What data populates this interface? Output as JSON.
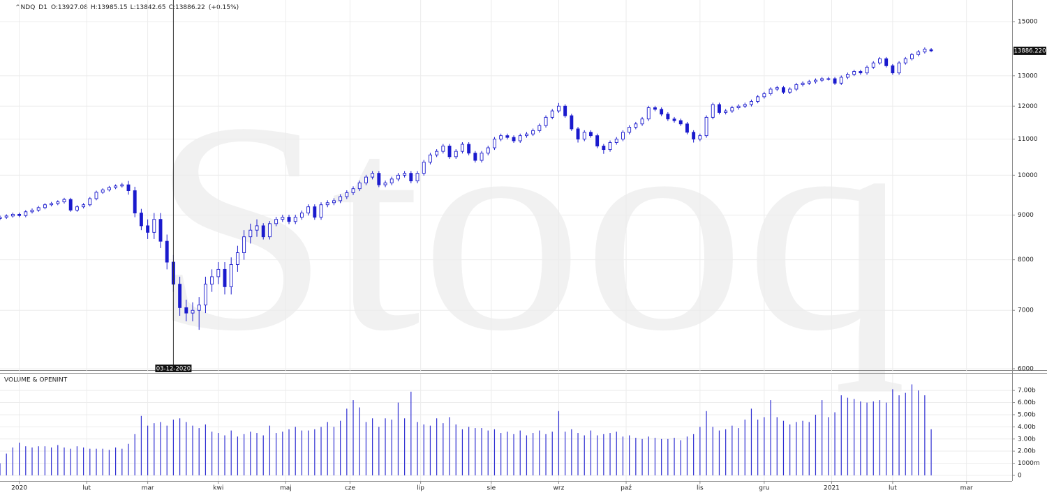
{
  "chart_data": [
    {
      "type": "candlestick",
      "symbol": "^NDQ",
      "interval": "D1",
      "header": {
        "open_label": "O:",
        "high_label": "H:",
        "low_label": "L:",
        "close_label": "C:",
        "change": "(+0.15%)"
      },
      "watermark": "Stooq",
      "color": "#1a1acd",
      "open": [
        8920,
        8950,
        8980,
        9020,
        8990,
        9080,
        9120,
        9180,
        9250,
        9280,
        9320,
        9380,
        9120,
        9200,
        9250,
        9400,
        9560,
        9620,
        9680,
        9720,
        9750,
        9600,
        9050,
        8750,
        8600,
        8900,
        8400,
        7950,
        7500,
        7050,
        6950,
        7000,
        7100,
        7500,
        7650,
        7800,
        7450,
        7900,
        8150,
        8500,
        8650,
        8750,
        8500,
        8800,
        8900,
        8950,
        8850,
        8950,
        9050,
        9200,
        8950,
        9250,
        9300,
        9350,
        9450,
        9550,
        9650,
        9800,
        9950,
        10050,
        9750,
        9800,
        9900,
        10000,
        10050,
        9850,
        10050,
        10350,
        10550,
        10650,
        10800,
        10500,
        10650,
        10850,
        10600,
        10400,
        10600,
        10750,
        11000,
        11100,
        11050,
        10950,
        11100,
        11150,
        11250,
        11400,
        11650,
        11850,
        12000,
        11700,
        11300,
        11000,
        11200,
        11100,
        10800,
        10700,
        10900,
        11000,
        11200,
        11350,
        11450,
        11600,
        11950,
        11900,
        11750,
        11600,
        11550,
        11450,
        11200,
        11000,
        11100,
        11650,
        12050,
        11800,
        11850,
        11950,
        12000,
        12050,
        12150,
        12300,
        12400,
        12550,
        12600,
        12450,
        12550,
        12700,
        12750,
        12800,
        12850,
        12900,
        12900,
        12750,
        12950,
        13050,
        13150,
        13100,
        13300,
        13450,
        13600,
        13350,
        13100,
        13450,
        13600,
        13750,
        13850,
        13927.08
      ],
      "high": [
        8990,
        9020,
        9060,
        9060,
        9120,
        9160,
        9220,
        9290,
        9320,
        9360,
        9420,
        9420,
        9240,
        9290,
        9440,
        9600,
        9660,
        9720,
        9760,
        9800,
        9850,
        9700,
        9150,
        8900,
        9050,
        9050,
        8550,
        8100,
        7650,
        7200,
        7150,
        7250,
        7650,
        7800,
        7950,
        7950,
        8050,
        8300,
        8650,
        8800,
        8900,
        8810,
        8860,
        8960,
        9010,
        9010,
        9010,
        9110,
        9260,
        9260,
        9310,
        9360,
        9410,
        9510,
        9610,
        9710,
        9860,
        10010,
        10110,
        10110,
        9860,
        9960,
        10060,
        10110,
        10110,
        10110,
        10410,
        10610,
        10710,
        10860,
        10860,
        10710,
        10910,
        10910,
        10660,
        10660,
        10810,
        11060,
        11160,
        11160,
        11110,
        11160,
        11210,
        11310,
        11460,
        11710,
        11910,
        12100,
        12060,
        11760,
        11360,
        11260,
        11260,
        11160,
        10860,
        10960,
        11060,
        11260,
        11410,
        11510,
        11660,
        12010,
        12010,
        11960,
        11810,
        11660,
        11610,
        11510,
        11260,
        11160,
        11710,
        12110,
        12110,
        11910,
        12010,
        12060,
        12110,
        12210,
        12360,
        12460,
        12610,
        12660,
        12660,
        12610,
        12760,
        12810,
        12860,
        12910,
        12960,
        12960,
        12960,
        13010,
        13110,
        13210,
        13210,
        13360,
        13510,
        13660,
        13660,
        13410,
        13510,
        13660,
        13810,
        13910,
        14010,
        13985.15
      ],
      "low": [
        8880,
        8910,
        8940,
        8950,
        8950,
        9040,
        9080,
        9140,
        9210,
        9240,
        9280,
        9080,
        9080,
        9160,
        9210,
        9360,
        9520,
        9580,
        9640,
        9680,
        9500,
        8950,
        8650,
        8450,
        8450,
        8250,
        7800,
        7350,
        6900,
        6800,
        6800,
        6650,
        6950,
        7350,
        7500,
        7300,
        7300,
        7750,
        8000,
        8350,
        8500,
        8440,
        8440,
        8740,
        8840,
        8790,
        8790,
        8890,
        8990,
        8890,
        8890,
        9190,
        9240,
        9290,
        9390,
        9490,
        9590,
        9740,
        9890,
        9690,
        9690,
        9740,
        9840,
        9940,
        9790,
        9790,
        9990,
        10290,
        10490,
        10590,
        10440,
        10440,
        10590,
        10540,
        10340,
        10340,
        10540,
        10690,
        10940,
        10990,
        10890,
        10890,
        11040,
        11090,
        11190,
        11340,
        11590,
        11790,
        11640,
        11240,
        10900,
        10940,
        11040,
        10740,
        10580,
        10640,
        10840,
        10940,
        11140,
        11290,
        11390,
        11540,
        11840,
        11690,
        11540,
        11490,
        11390,
        11140,
        10900,
        10940,
        11040,
        11590,
        11740,
        11740,
        11790,
        11890,
        11940,
        11990,
        12090,
        12240,
        12340,
        12490,
        12390,
        12390,
        12490,
        12640,
        12690,
        12740,
        12790,
        12840,
        12690,
        12690,
        12890,
        12990,
        13040,
        13040,
        13240,
        13390,
        13290,
        13040,
        13040,
        13390,
        13540,
        13690,
        13790,
        13842.65
      ],
      "close": [
        8950,
        8980,
        9020,
        8990,
        9080,
        9120,
        9180,
        9250,
        9280,
        9320,
        9380,
        9120,
        9200,
        9250,
        9400,
        9560,
        9620,
        9680,
        9720,
        9750,
        9600,
        9050,
        8750,
        8600,
        8900,
        8400,
        7950,
        7500,
        7050,
        6950,
        7000,
        7100,
        7500,
        7650,
        7800,
        7450,
        7900,
        8150,
        8500,
        8650,
        8750,
        8500,
        8800,
        8900,
        8950,
        8850,
        8950,
        9050,
        9200,
        8950,
        9250,
        9300,
        9350,
        9450,
        9550,
        9650,
        9800,
        9950,
        10050,
        9750,
        9800,
        9900,
        10000,
        10050,
        9850,
        10050,
        10350,
        10550,
        10650,
        10800,
        10500,
        10650,
        10850,
        10600,
        10400,
        10600,
        10750,
        11000,
        11100,
        11050,
        10950,
        11100,
        11150,
        11250,
        11400,
        11650,
        11850,
        12000,
        11700,
        11300,
        11000,
        11200,
        11100,
        10800,
        10700,
        10900,
        11000,
        11200,
        11350,
        11450,
        11600,
        11950,
        11900,
        11750,
        11600,
        11550,
        11450,
        11200,
        11000,
        11100,
        11650,
        12050,
        11800,
        11850,
        11950,
        12000,
        12050,
        12150,
        12300,
        12400,
        12550,
        12600,
        12450,
        12550,
        12700,
        12750,
        12800,
        12850,
        12900,
        12900,
        12750,
        12950,
        13050,
        13150,
        13100,
        13300,
        13450,
        13600,
        13350,
        13100,
        13450,
        13600,
        13750,
        13850,
        13950,
        13886.22
      ],
      "last_price": {
        "value": 13886.22,
        "label": "13886.220"
      },
      "crosshair": {
        "x": 27,
        "label": "03-12-2020"
      },
      "log_scale": true,
      "grid": true,
      "xlim": [
        0,
        157.6
      ],
      "ylim": [
        5956,
        15880
      ],
      "yticks": [
        6000,
        7000,
        8000,
        9000,
        10000,
        11000,
        12000,
        13000,
        15000
      ]
    },
    {
      "type": "bar",
      "title": "VOLUME & OPENINT",
      "color": "#2f2fd2",
      "values": [
        1000000000.0,
        1800000000.0,
        2300000000.0,
        2700000000.0,
        2400000000.0,
        2300000000.0,
        2400000000.0,
        2400000000.0,
        2300000000.0,
        2500000000.0,
        2300000000.0,
        2200000000.0,
        2400000000.0,
        2300000000.0,
        2200000000.0,
        2200000000.0,
        2200000000.0,
        2100000000.0,
        2300000000.0,
        2200000000.0,
        2600000000.0,
        3400000000.0,
        4900000000.0,
        4100000000.0,
        4300000000.0,
        4400000000.0,
        4100000000.0,
        4600000000.0,
        4700000000.0,
        4400000000.0,
        4100000000.0,
        3900000000.0,
        4200000000.0,
        3600000000.0,
        3500000000.0,
        3300000000.0,
        3700000000.0,
        3200000000.0,
        3400000000.0,
        3600000000.0,
        3500000000.0,
        3300000000.0,
        4100000000.0,
        3500000000.0,
        3600000000.0,
        3800000000.0,
        4000000000.0,
        3700000000.0,
        3700000000.0,
        3800000000.0,
        4000000000.0,
        4400000000.0,
        4000000000.0,
        4500000000.0,
        5500000000.0,
        6200000000.0,
        5600000000.0,
        4400000000.0,
        4700000000.0,
        4000000000.0,
        4700000000.0,
        4600000000.0,
        6000000000.0,
        4700000000.0,
        6900000000.0,
        4400000000.0,
        4200000000.0,
        4100000000.0,
        4700000000.0,
        4300000000.0,
        4800000000.0,
        4200000000.0,
        3800000000.0,
        4000000000.0,
        3900000000.0,
        3900000000.0,
        3700000000.0,
        3800000000.0,
        3500000000.0,
        3600000000.0,
        3400000000.0,
        3700000000.0,
        3300000000.0,
        3500000000.0,
        3700000000.0,
        3400000000.0,
        3600000000.0,
        5300000000.0,
        3600000000.0,
        3800000000.0,
        3500000000.0,
        3300000000.0,
        3700000000.0,
        3300000000.0,
        3400000000.0,
        3500000000.0,
        3600000000.0,
        3200000000.0,
        3300000000.0,
        3100000000.0,
        3000000000.0,
        3200000000.0,
        3100000000.0,
        3000000000.0,
        3000000000.0,
        3100000000.0,
        2900000000.0,
        3200000000.0,
        3400000000.0,
        4000000000.0,
        5300000000.0,
        4000000000.0,
        3700000000.0,
        3800000000.0,
        4100000000.0,
        3900000000.0,
        4600000000.0,
        5500000000.0,
        4600000000.0,
        4800000000.0,
        6200000000.0,
        4800000000.0,
        4500000000.0,
        4200000000.0,
        4400000000.0,
        4500000000.0,
        4400000000.0,
        5000000000.0,
        6200000000.0,
        4800000000.0,
        5200000000.0,
        6600000000.0,
        6400000000.0,
        6300000000.0,
        6100000000.0,
        6000000000.0,
        6100000000.0,
        6200000000.0,
        6000000000.0,
        7100000000.0,
        6600000000.0,
        6800000000.0,
        7500000000.0,
        7000000000.0,
        6600000000.0,
        3800000000.0
      ],
      "grid": true,
      "xlim": [
        0,
        157.6
      ],
      "xticks": [
        {
          "value": 3,
          "label": "2020"
        },
        {
          "value": 13.5,
          "label": "lut"
        },
        {
          "value": 23,
          "label": "mar"
        },
        {
          "value": 34,
          "label": "kwi"
        },
        {
          "value": 44.5,
          "label": "maj"
        },
        {
          "value": 54.5,
          "label": "cze"
        },
        {
          "value": 65.5,
          "label": "lip"
        },
        {
          "value": 76.5,
          "label": "sie"
        },
        {
          "value": 87,
          "label": "wrz"
        },
        {
          "value": 97.5,
          "label": "paź"
        },
        {
          "value": 109,
          "label": "lis"
        },
        {
          "value": 119,
          "label": "gru"
        },
        {
          "value": 129.5,
          "label": "2021"
        },
        {
          "value": 139,
          "label": "lut"
        },
        {
          "value": 150.5,
          "label": "mar"
        }
      ],
      "ylim": [
        -460000000,
        8330000000
      ],
      "yticks": [
        0,
        {
          "value": 1000000000,
          "label": "1000m"
        },
        {
          "value": 2000000000,
          "label": "2.00b"
        },
        {
          "value": 3000000000,
          "label": "3.00b"
        },
        {
          "value": 4000000000,
          "label": "4.00b"
        },
        {
          "value": 5000000000,
          "label": "5.00b"
        },
        {
          "value": 6000000000,
          "label": "6.00b"
        },
        {
          "value": 7000000000,
          "label": "7.00b"
        }
      ]
    }
  ]
}
